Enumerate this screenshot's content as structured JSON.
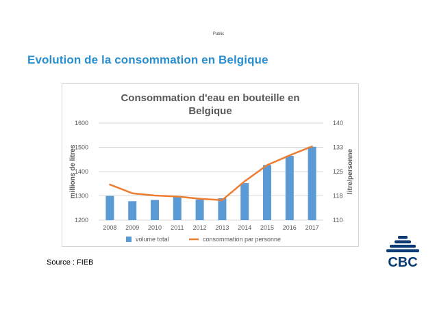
{
  "header": {
    "classification": "Public"
  },
  "slide": {
    "title": "Evolution de la consommation en Belgique",
    "source": "Source : FIEB"
  },
  "logo": {
    "text": "CBC",
    "color": "#0a3a74"
  },
  "chart_data": {
    "type": "bar+line",
    "title_lines": [
      "Consommation d'eau en bouteille en",
      "Belgique"
    ],
    "categories": [
      "2008",
      "2009",
      "2010",
      "2011",
      "2012",
      "2013",
      "2014",
      "2015",
      "2016",
      "2017"
    ],
    "series": [
      {
        "name": "volume total",
        "type": "bar",
        "axis": "left",
        "color": "#5b9bd5",
        "values": [
          1300,
          1278,
          1283,
          1297,
          1285,
          1290,
          1352,
          1427,
          1465,
          1502
        ]
      },
      {
        "name": "consommation par personne",
        "type": "line",
        "axis": "right",
        "color": "#ed7d31",
        "values": [
          121,
          118.3,
          117.6,
          117.3,
          116.6,
          116.2,
          122,
          127,
          130,
          132.8
        ]
      }
    ],
    "left_axis": {
      "label": "millions de litres",
      "ylim": [
        1200,
        1600
      ],
      "ticks": [
        "1200",
        "1300",
        "1400",
        "1500",
        "1600"
      ]
    },
    "right_axis": {
      "label": "litre/personne",
      "ylim": [
        110,
        140
      ],
      "ticks": [
        "110",
        "118",
        "125",
        "133",
        "140"
      ]
    },
    "grid": true,
    "legend_position": "bottom"
  }
}
